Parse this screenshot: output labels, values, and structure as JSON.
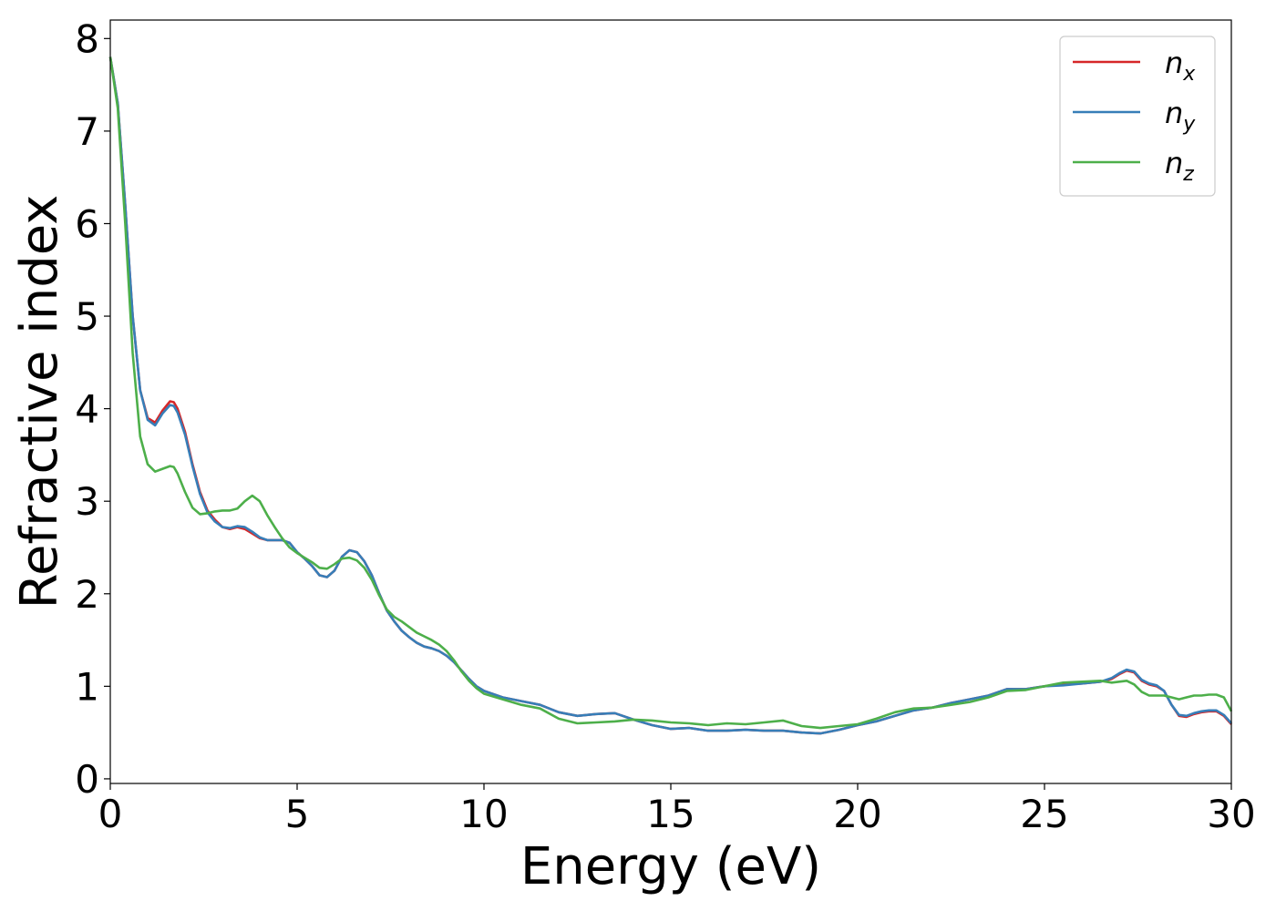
{
  "chart_data": {
    "type": "line",
    "xlabel": "Energy (eV)",
    "ylabel": "Refractive index",
    "xlim": [
      0,
      30
    ],
    "ylim": [
      -0.05,
      8.2
    ],
    "xticks": [
      0,
      5,
      10,
      15,
      20,
      25,
      30
    ],
    "xtick_labels": [
      "0",
      "5",
      "10",
      "15",
      "20",
      "25",
      "30"
    ],
    "yticks": [
      0,
      1,
      2,
      3,
      4,
      5,
      6,
      7,
      8
    ],
    "ytick_labels": [
      "0",
      "1",
      "2",
      "3",
      "4",
      "5",
      "6",
      "7",
      "8"
    ],
    "grid": false,
    "legend_position": "top-right",
    "x": [
      0,
      0.2,
      0.4,
      0.6,
      0.8,
      1.0,
      1.2,
      1.4,
      1.6,
      1.7,
      1.8,
      2.0,
      2.2,
      2.4,
      2.6,
      2.8,
      3.0,
      3.2,
      3.4,
      3.6,
      3.8,
      4.0,
      4.2,
      4.4,
      4.6,
      4.8,
      5.0,
      5.2,
      5.4,
      5.6,
      5.8,
      6.0,
      6.2,
      6.4,
      6.6,
      6.8,
      7.0,
      7.2,
      7.4,
      7.6,
      7.8,
      8.0,
      8.2,
      8.4,
      8.6,
      8.8,
      9.0,
      9.2,
      9.4,
      9.6,
      9.8,
      10.0,
      10.5,
      11.0,
      11.5,
      12.0,
      12.5,
      13.0,
      13.5,
      14.0,
      14.5,
      15.0,
      15.5,
      16.0,
      16.5,
      17.0,
      17.5,
      18.0,
      18.5,
      19.0,
      19.5,
      20.0,
      20.5,
      21.0,
      21.5,
      22.0,
      22.5,
      23.0,
      23.5,
      24.0,
      24.5,
      25.0,
      25.5,
      26.0,
      26.5,
      26.8,
      27.0,
      27.2,
      27.4,
      27.6,
      27.8,
      28.0,
      28.2,
      28.4,
      28.6,
      28.8,
      29.0,
      29.2,
      29.4,
      29.6,
      29.8,
      30.0
    ],
    "series": [
      {
        "name": "n_x",
        "color": "#d62728",
        "values": [
          7.8,
          7.3,
          6.2,
          5.0,
          4.2,
          3.9,
          3.85,
          3.98,
          4.08,
          4.07,
          4.0,
          3.75,
          3.4,
          3.1,
          2.9,
          2.8,
          2.72,
          2.7,
          2.72,
          2.7,
          2.65,
          2.6,
          2.58,
          2.58,
          2.58,
          2.55,
          2.45,
          2.38,
          2.3,
          2.2,
          2.18,
          2.25,
          2.4,
          2.47,
          2.45,
          2.35,
          2.2,
          2.0,
          1.82,
          1.7,
          1.6,
          1.53,
          1.47,
          1.43,
          1.41,
          1.38,
          1.33,
          1.26,
          1.17,
          1.08,
          1.0,
          0.95,
          0.88,
          0.84,
          0.8,
          0.72,
          0.68,
          0.7,
          0.71,
          0.64,
          0.58,
          0.54,
          0.55,
          0.52,
          0.52,
          0.53,
          0.52,
          0.52,
          0.5,
          0.49,
          0.53,
          0.58,
          0.62,
          0.68,
          0.74,
          0.77,
          0.82,
          0.86,
          0.9,
          0.97,
          0.97,
          1.0,
          1.02,
          1.03,
          1.05,
          1.08,
          1.13,
          1.17,
          1.15,
          1.06,
          1.02,
          1.0,
          0.95,
          0.8,
          0.68,
          0.67,
          0.7,
          0.72,
          0.73,
          0.73,
          0.68,
          0.59
        ]
      },
      {
        "name": "n_y",
        "color": "#377eb8",
        "values": [
          7.8,
          7.3,
          6.2,
          5.0,
          4.2,
          3.88,
          3.82,
          3.95,
          4.04,
          4.03,
          3.96,
          3.72,
          3.38,
          3.08,
          2.88,
          2.78,
          2.72,
          2.71,
          2.73,
          2.72,
          2.67,
          2.61,
          2.58,
          2.58,
          2.58,
          2.55,
          2.45,
          2.38,
          2.3,
          2.2,
          2.18,
          2.25,
          2.4,
          2.47,
          2.45,
          2.35,
          2.2,
          2.0,
          1.82,
          1.7,
          1.6,
          1.53,
          1.47,
          1.43,
          1.41,
          1.38,
          1.33,
          1.26,
          1.17,
          1.08,
          1.0,
          0.95,
          0.88,
          0.84,
          0.8,
          0.72,
          0.68,
          0.7,
          0.71,
          0.64,
          0.58,
          0.54,
          0.55,
          0.52,
          0.52,
          0.53,
          0.52,
          0.52,
          0.5,
          0.49,
          0.53,
          0.58,
          0.62,
          0.68,
          0.74,
          0.77,
          0.82,
          0.86,
          0.9,
          0.97,
          0.97,
          1.0,
          1.01,
          1.03,
          1.05,
          1.09,
          1.14,
          1.18,
          1.16,
          1.07,
          1.03,
          1.01,
          0.95,
          0.8,
          0.69,
          0.68,
          0.71,
          0.73,
          0.74,
          0.74,
          0.69,
          0.6
        ]
      },
      {
        "name": "n_z",
        "color": "#4daf4a",
        "values": [
          7.8,
          7.25,
          6.0,
          4.6,
          3.7,
          3.4,
          3.32,
          3.35,
          3.38,
          3.37,
          3.3,
          3.1,
          2.93,
          2.86,
          2.87,
          2.89,
          2.9,
          2.9,
          2.92,
          3.0,
          3.06,
          3.0,
          2.85,
          2.72,
          2.6,
          2.5,
          2.44,
          2.39,
          2.34,
          2.28,
          2.27,
          2.32,
          2.38,
          2.39,
          2.36,
          2.28,
          2.15,
          1.98,
          1.83,
          1.75,
          1.7,
          1.64,
          1.58,
          1.54,
          1.5,
          1.45,
          1.38,
          1.28,
          1.16,
          1.06,
          0.98,
          0.92,
          0.86,
          0.8,
          0.76,
          0.65,
          0.6,
          0.61,
          0.62,
          0.64,
          0.63,
          0.61,
          0.6,
          0.58,
          0.6,
          0.59,
          0.61,
          0.63,
          0.57,
          0.55,
          0.57,
          0.59,
          0.65,
          0.72,
          0.76,
          0.77,
          0.8,
          0.83,
          0.88,
          0.95,
          0.96,
          1.0,
          1.04,
          1.05,
          1.06,
          1.04,
          1.05,
          1.06,
          1.02,
          0.94,
          0.9,
          0.9,
          0.9,
          0.88,
          0.86,
          0.88,
          0.9,
          0.9,
          0.91,
          0.91,
          0.88,
          0.73
        ]
      }
    ]
  }
}
